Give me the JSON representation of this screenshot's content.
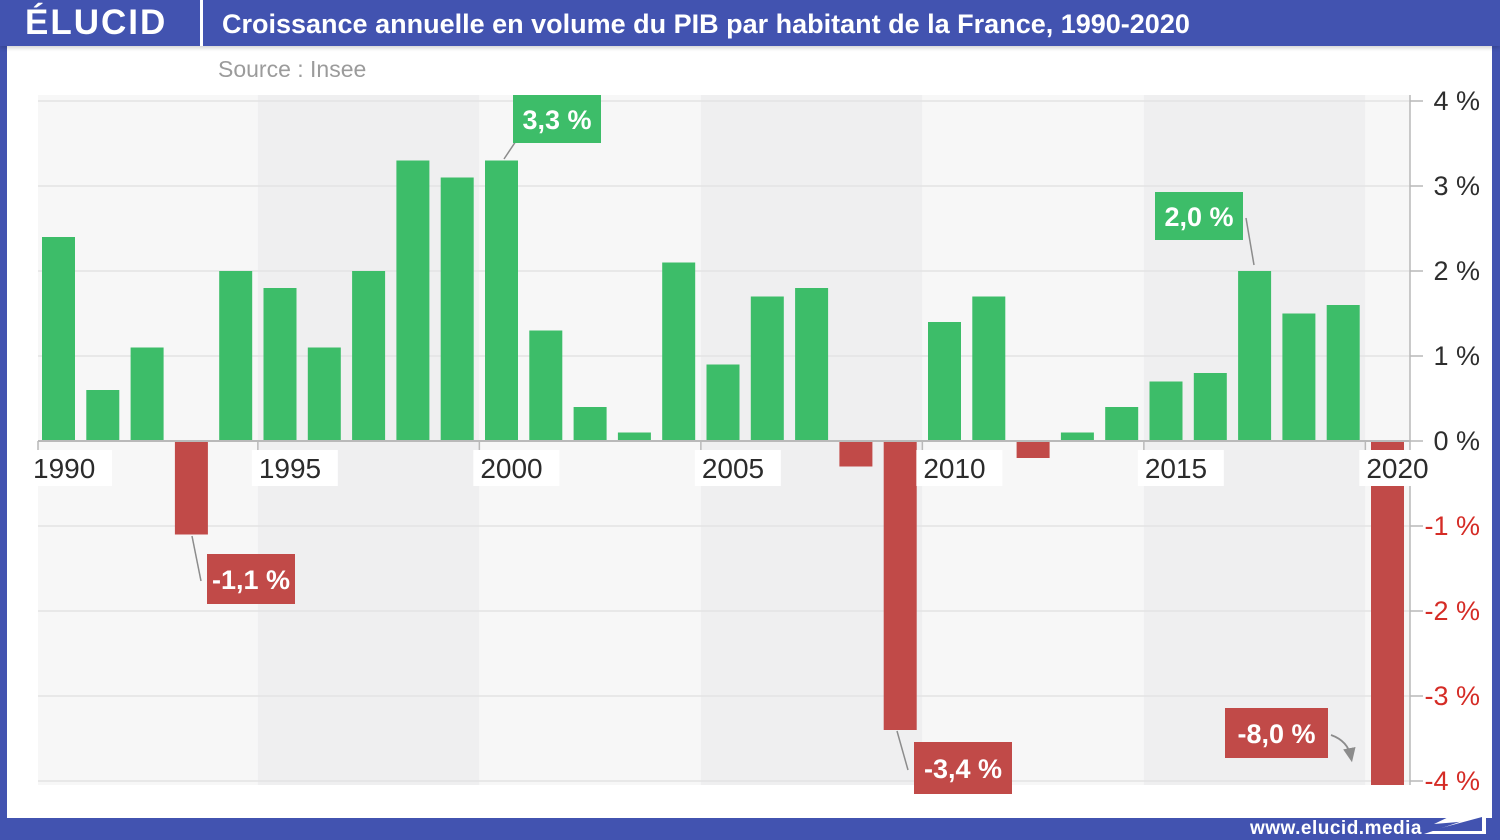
{
  "header": {
    "logo": "ÉLUCID",
    "title": "Croissance annuelle en volume du PIB par habitant de la France, 1990-2020"
  },
  "source": "Source : Insee",
  "footer": {
    "url": "www.elucid.media"
  },
  "chart_data": {
    "type": "bar",
    "title": "Croissance annuelle en volume du PIB par habitant de la France, 1990-2020",
    "source": "Insee",
    "x": [
      1990,
      1991,
      1992,
      1993,
      1994,
      1995,
      1996,
      1997,
      1998,
      1999,
      2000,
      2001,
      2002,
      2003,
      2004,
      2005,
      2006,
      2007,
      2008,
      2009,
      2010,
      2011,
      2012,
      2013,
      2014,
      2015,
      2016,
      2017,
      2018,
      2019,
      2020
    ],
    "values": [
      2.4,
      0.6,
      1.1,
      -1.1,
      2.0,
      1.8,
      1.1,
      2.0,
      3.3,
      3.1,
      3.3,
      1.3,
      0.4,
      0.1,
      2.1,
      0.9,
      1.7,
      1.8,
      -0.3,
      -3.4,
      1.4,
      1.7,
      -0.2,
      0.1,
      0.4,
      0.7,
      0.8,
      2.0,
      1.5,
      1.6,
      -8.0
    ],
    "ylabel": "",
    "xlabel": "",
    "ylim": [
      -4,
      4
    ],
    "ytick_step": 1,
    "ytick_suffix": " %",
    "xticks": [
      1990,
      1995,
      2000,
      2005,
      2010,
      2015,
      2020
    ],
    "grid": true,
    "legend": false,
    "clip_note": "2020 bar (-8.0) is clipped at the -4 axis limit",
    "colors": {
      "positive": "#3dbd69",
      "negative": "#c14a48",
      "ytick_positive": "#2e2e2e",
      "ytick_negative": "#d52c26",
      "band_light": "#f7f7f7",
      "band_dark": "#efeff0",
      "gridline": "#e4e4e4",
      "axis": "#b9b9b9",
      "connector": "#8c8c8c",
      "year_label": "#2b2b2b",
      "accent_blue": "#4253b0"
    },
    "annotations": [
      {
        "year": 2000,
        "label": "3,3 %"
      },
      {
        "year": 1993,
        "label": "-1,1 %"
      },
      {
        "year": 2009,
        "label": "-3,4 %"
      },
      {
        "year": 2017,
        "label": "2,0 %"
      },
      {
        "year": 2020,
        "label": "-8,0 %"
      }
    ]
  }
}
